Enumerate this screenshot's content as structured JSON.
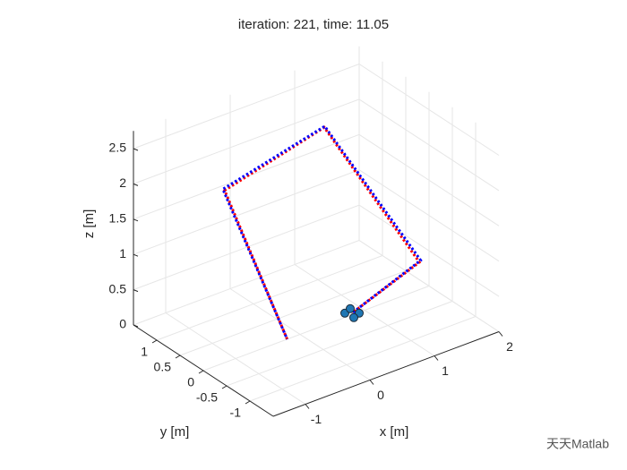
{
  "chart_data": {
    "type": "line3d",
    "title": "iteration: 221, time: 11.05",
    "xlabel": "x [m]",
    "ylabel": "y [m]",
    "zlabel": "z [m]",
    "xlim": [
      -1.5,
      2
    ],
    "ylim": [
      -1.5,
      1.5
    ],
    "zlim": [
      0,
      2.75
    ],
    "xticks": [
      -1,
      0,
      1,
      2
    ],
    "yticks": [
      -1,
      -0.5,
      0,
      0.5,
      1
    ],
    "zticks": [
      0,
      0.5,
      1,
      1.5,
      2,
      2.5
    ],
    "grid": true,
    "series": [
      {
        "color": "#ff0000",
        "x": [
          -0.2,
          -0.7,
          0.7,
          1.2,
          0.3
        ],
        "y": [
          0,
          0.65,
          0.45,
          -0.9,
          -0.7
        ],
        "z": [
          0,
          2,
          2.5,
          1,
          0.5
        ]
      },
      {
        "color": "#0000ff",
        "x": [
          -0.2,
          -0.72,
          0.7,
          1.22,
          0.3
        ],
        "y": [
          0,
          0.66,
          0.44,
          -0.9,
          -0.7
        ],
        "z": [
          0,
          2.02,
          2.52,
          1.02,
          0.5
        ]
      }
    ],
    "vehicle": {
      "x": 0.3,
      "y": -0.7,
      "z": 0.5,
      "color": "#1f77b4"
    },
    "watermark": "天天Matlab"
  }
}
